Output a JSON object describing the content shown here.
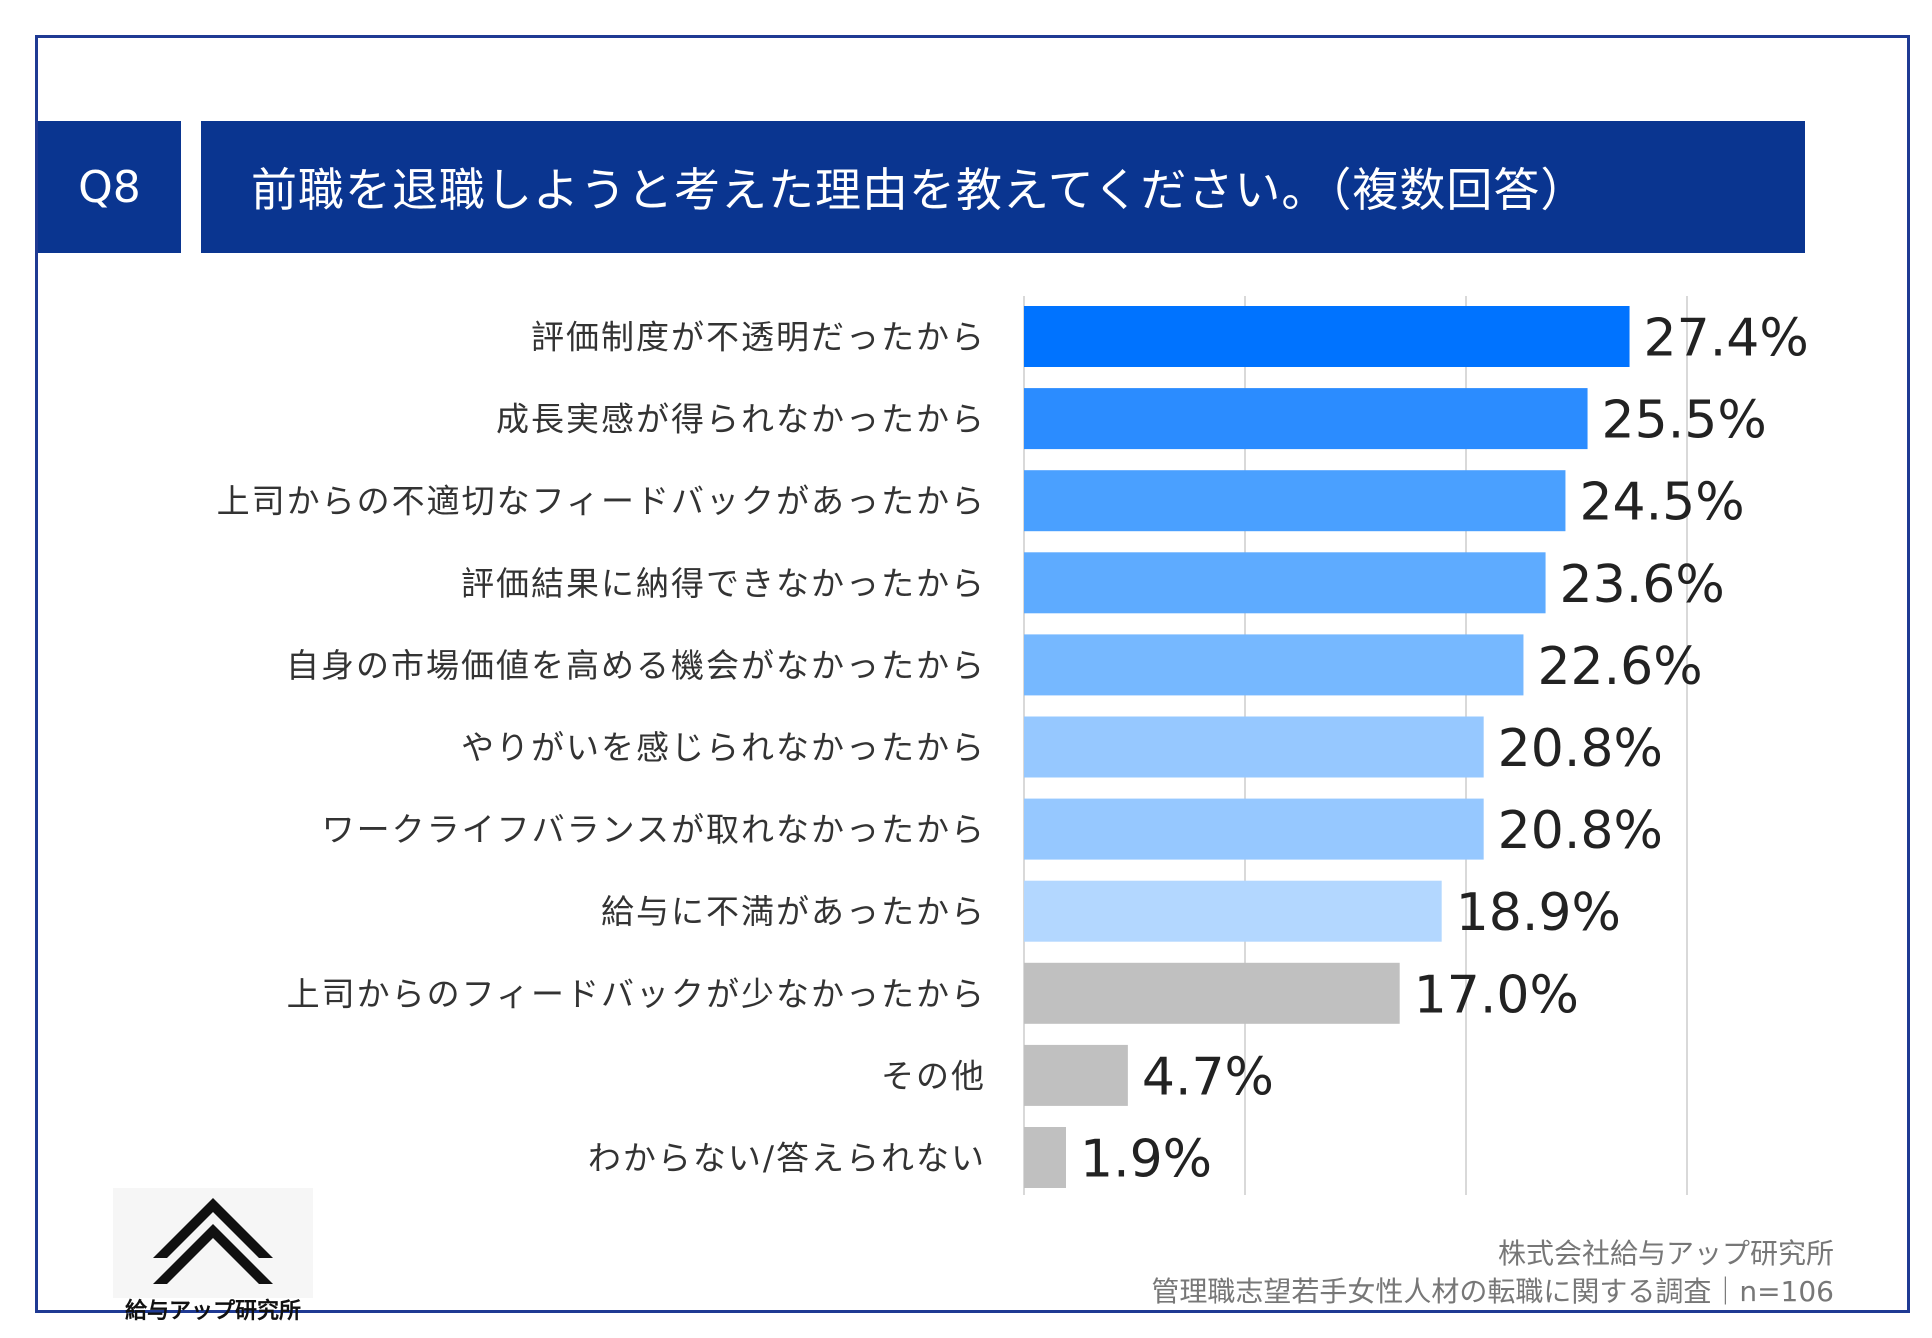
{
  "header": {
    "question_no": "Q8",
    "title": "前職を退職しようと考えた理由を教えてください。（複数回答）"
  },
  "chart_data": {
    "type": "bar",
    "orientation": "horizontal",
    "title": "前職を退職しようと考えた理由を教えてください。（複数回答）",
    "unit": "%",
    "xlim": [
      0,
      30
    ],
    "grid": true,
    "categories": [
      "評価制度が不透明だったから",
      "成長実感が得られなかったから",
      "上司からの不適切なフィードバックがあったから",
      "評価結果に納得できなかったから",
      "自身の市場価値を高める機会がなかったから",
      "やりがいを感じられなかったから",
      "ワークライフバランスが取れなかったから",
      "給与に不満があったから",
      "上司からのフィードバックが少なかったから",
      "その他",
      "わからない/答えられない"
    ],
    "values": [
      27.4,
      25.5,
      24.5,
      23.6,
      22.6,
      20.8,
      20.8,
      18.9,
      17.0,
      4.7,
      1.9
    ],
    "value_labels": [
      "27.4%",
      "25.5%",
      "24.5%",
      "23.6%",
      "22.6%",
      "20.8%",
      "20.8%",
      "18.9%",
      "17.0%",
      "4.7%",
      "1.9%"
    ],
    "colors": [
      "#0073ff",
      "#2b8cff",
      "#4aa0ff",
      "#5eabff",
      "#76b8ff",
      "#96c8ff",
      "#96c8ff",
      "#b3d7ff",
      "#c0c0c0",
      "#c0c0c0",
      "#c0c0c0"
    ]
  },
  "logo": {
    "text": "給与アップ研究所"
  },
  "source": {
    "line1": "株式会社給与アップ研究所",
    "line2": "管理職志望若手女性人材の転職に関する調査｜n=106"
  }
}
